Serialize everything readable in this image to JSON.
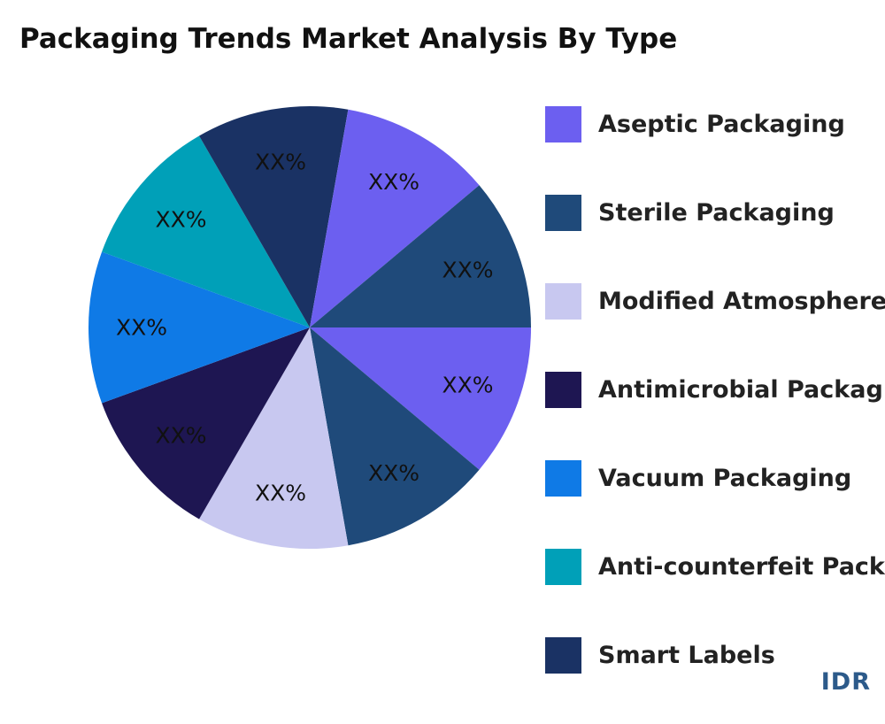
{
  "chart_data": {
    "type": "pie",
    "title": "Packaging Trends Market Analysis By Type",
    "slices": [
      {
        "name": "Aseptic Packaging",
        "value": 11.11,
        "label": "XX%",
        "color": "#6c5ff0"
      },
      {
        "name": "Sterile Packaging",
        "value": 11.11,
        "label": "XX%",
        "color": "#1f4a7a"
      },
      {
        "name": "Modified Atmosphere Packaging",
        "value": 11.11,
        "label": "XX%",
        "color": "#c8c8f0"
      },
      {
        "name": "Antimicrobial Packaging",
        "value": 11.11,
        "label": "XX%",
        "color": "#1e1652"
      },
      {
        "name": "Vacuum Packaging",
        "value": 11.11,
        "label": "XX%",
        "color": "#0f7ae6"
      },
      {
        "name": "Anti-counterfeit Packaging",
        "value": 11.11,
        "label": "XX%",
        "color": "#00a0b8"
      },
      {
        "name": "Smart Labels",
        "value": 11.11,
        "label": "XX%",
        "color": "#1a3264"
      },
      {
        "name": "Aseptic Packaging",
        "value": 11.11,
        "label": "XX%",
        "color": "#6c5ff0"
      },
      {
        "name": "Sterile Packaging",
        "value": 11.11,
        "label": "XX%",
        "color": "#1f4a7a"
      }
    ],
    "legend": [
      {
        "label": "Aseptic Packaging",
        "color": "#6c5ff0"
      },
      {
        "label": "Sterile Packaging",
        "color": "#1f4a7a"
      },
      {
        "label": "Modified Atmosphere Packaging",
        "color": "#c8c8f0"
      },
      {
        "label": "Antimicrobial Packaging",
        "color": "#1e1652"
      },
      {
        "label": "Vacuum Packaging",
        "color": "#0f7ae6"
      },
      {
        "label": "Anti-counterfeit Packaging",
        "color": "#00a0b8"
      },
      {
        "label": "Smart Labels",
        "color": "#1a3264"
      }
    ],
    "legend_position": "right"
  },
  "brand": "IDR"
}
